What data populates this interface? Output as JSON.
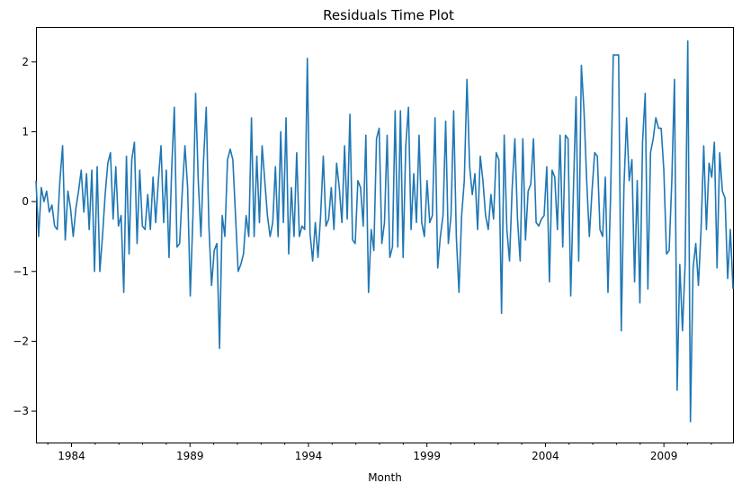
{
  "chart_data": {
    "type": "line",
    "title": "Residuals Time Plot",
    "xlabel": "Month",
    "ylabel": "",
    "x_start": "1982-07",
    "x_end": "2011-12",
    "xlim": [
      "1982-07",
      "2011-12"
    ],
    "ylim": [
      -3.45,
      2.5
    ],
    "grid": false,
    "line_color": "#1f77b4",
    "x_ticks": [
      {
        "value": "1984-01",
        "label": "1984"
      },
      {
        "value": "1989-01",
        "label": "1989"
      },
      {
        "value": "1994-01",
        "label": "1994"
      },
      {
        "value": "1999-01",
        "label": "1999"
      },
      {
        "value": "2004-01",
        "label": "2004"
      },
      {
        "value": "2009-01",
        "label": "2009"
      }
    ],
    "y_ticks": [
      {
        "value": 2,
        "label": "2"
      },
      {
        "value": 1,
        "label": "1"
      },
      {
        "value": 0,
        "label": "0"
      },
      {
        "value": -1,
        "label": "−1"
      },
      {
        "value": -2,
        "label": "−2"
      },
      {
        "value": -3,
        "label": "−3"
      }
    ],
    "values": [
      0.3,
      -0.5,
      0.2,
      0.0,
      0.15,
      -0.15,
      -0.05,
      -0.35,
      -0.4,
      0.3,
      0.8,
      -0.55,
      0.15,
      -0.1,
      -0.5,
      -0.1,
      0.15,
      0.45,
      -0.15,
      0.4,
      -0.4,
      0.45,
      -1.0,
      0.5,
      -1.0,
      -0.5,
      0.1,
      0.55,
      0.7,
      -0.25,
      0.5,
      -0.35,
      -0.2,
      -1.3,
      0.65,
      -0.75,
      0.6,
      0.85,
      -0.6,
      0.45,
      -0.35,
      -0.4,
      0.1,
      -0.4,
      0.35,
      -0.3,
      0.3,
      0.8,
      -0.3,
      0.45,
      -0.8,
      0.45,
      1.35,
      -0.65,
      -0.6,
      0.15,
      0.8,
      0.2,
      -1.35,
      -0.2,
      1.55,
      0.3,
      -0.5,
      0.6,
      1.35,
      -0.35,
      -1.2,
      -0.7,
      -0.6,
      -2.1,
      -0.2,
      -0.5,
      0.6,
      0.75,
      0.6,
      -0.2,
      -1.0,
      -0.9,
      -0.75,
      -0.2,
      -0.5,
      1.2,
      -0.5,
      0.65,
      -0.3,
      0.8,
      0.3,
      -0.2,
      -0.5,
      -0.3,
      0.5,
      -0.5,
      1.0,
      -0.3,
      1.2,
      -0.75,
      0.2,
      -0.5,
      0.7,
      -0.5,
      -0.35,
      -0.4,
      2.05,
      -0.45,
      -0.85,
      -0.3,
      -0.8,
      -0.2,
      0.65,
      -0.35,
      -0.25,
      0.2,
      -0.4,
      0.55,
      0.2,
      -0.3,
      0.8,
      -0.25,
      1.25,
      -0.55,
      -0.6,
      0.3,
      0.2,
      -0.35,
      0.95,
      -1.3,
      -0.4,
      -0.7,
      0.9,
      1.05,
      -0.6,
      -0.3,
      0.95,
      -0.8,
      -0.65,
      1.3,
      -0.65,
      1.3,
      -0.8,
      0.8,
      1.35,
      -0.4,
      0.4,
      -0.3,
      0.95,
      -0.3,
      -0.5,
      0.3,
      -0.3,
      -0.2,
      1.2,
      -0.95,
      -0.5,
      -0.2,
      1.15,
      -0.6,
      -0.2,
      1.3,
      -0.5,
      -1.3,
      -0.2,
      0.3,
      1.75,
      0.5,
      0.1,
      0.4,
      -0.4,
      0.65,
      0.3,
      -0.2,
      -0.4,
      0.1,
      -0.25,
      0.7,
      0.6,
      -1.6,
      0.95,
      -0.4,
      -0.85,
      0.2,
      0.9,
      -0.25,
      -0.85,
      0.9,
      -0.55,
      0.15,
      0.25,
      0.9,
      -0.3,
      -0.35,
      -0.25,
      -0.2,
      0.5,
      -1.15,
      0.45,
      0.35,
      -0.4,
      0.95,
      -0.65,
      0.95,
      0.9,
      -1.35,
      0.15,
      1.5,
      -0.85,
      1.95,
      1.3,
      0.3,
      -0.5,
      0.15,
      0.7,
      0.65,
      -0.4,
      -0.5,
      0.35,
      -1.3,
      0.1,
      2.1,
      2.1,
      2.1,
      -1.85,
      0.2,
      1.2,
      0.3,
      0.6,
      -1.15,
      0.3,
      -1.45,
      0.85,
      1.55,
      -1.25,
      0.7,
      0.9,
      1.2,
      1.05,
      1.05,
      0.45,
      -0.75,
      -0.7,
      0.3,
      1.75,
      -2.7,
      -0.9,
      -1.85,
      -0.9,
      2.3,
      -3.15,
      -0.95,
      -0.6,
      -1.2,
      -0.4,
      0.8,
      -0.4,
      0.55,
      0.35,
      0.85,
      -0.95,
      0.7,
      0.15,
      0.05,
      -1.1,
      -0.4,
      -1.25
    ]
  }
}
